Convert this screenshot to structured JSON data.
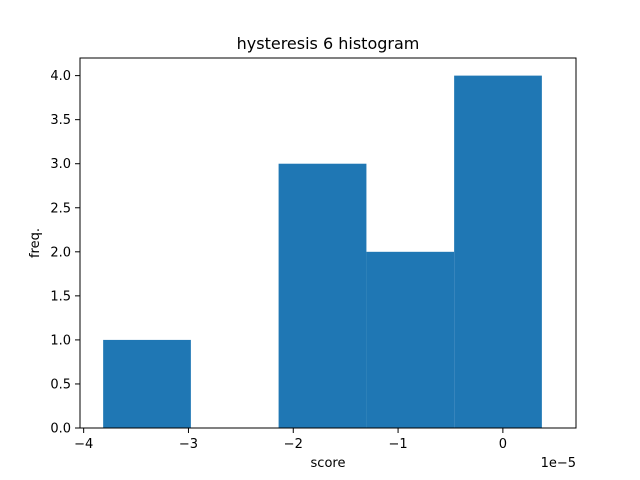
{
  "chart_data": {
    "type": "bar",
    "title": "hysteresis 6 histogram",
    "xlabel": "score",
    "ylabel": "freq.",
    "x_offset_label": "1e−5",
    "xlim": [
      -4.0349,
      0.6977
    ],
    "ylim": [
      0,
      4.2
    ],
    "x_scale_factor": 1e-05,
    "x_ticks": [
      -4,
      -3,
      -2,
      -1,
      0
    ],
    "x_tick_labels": [
      "−4",
      "−3",
      "−2",
      "−1",
      "0"
    ],
    "y_ticks": [
      0,
      0.5,
      1.0,
      1.5,
      2.0,
      2.5,
      3.0,
      3.5,
      4.0
    ],
    "y_tick_labels": [
      "0.0",
      "0.5",
      "1.0",
      "1.5",
      "2.0",
      "2.5",
      "3.0",
      "3.5",
      "4.0"
    ],
    "bins": [
      {
        "x0": -3.814,
        "x1": -2.977,
        "count": 1
      },
      {
        "x0": -2.977,
        "x1": -2.14,
        "count": 0
      },
      {
        "x0": -2.14,
        "x1": -1.302,
        "count": 3
      },
      {
        "x0": -1.302,
        "x1": -0.465,
        "count": 2
      },
      {
        "x0": -0.465,
        "x1": 0.372,
        "count": 4
      }
    ],
    "bar_color": "#1f77b4",
    "grid": false,
    "legend": "none"
  }
}
